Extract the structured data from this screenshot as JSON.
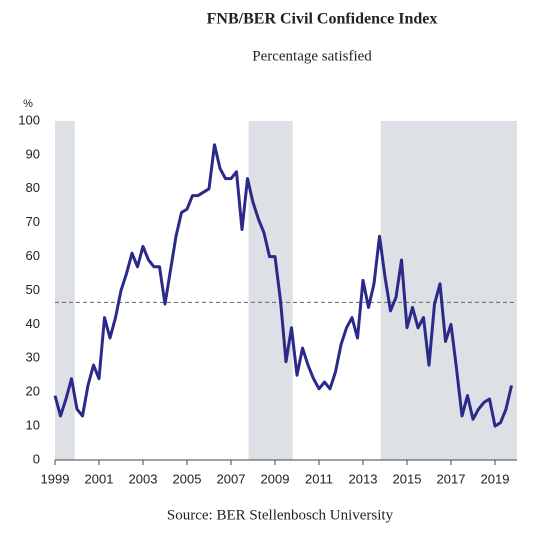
{
  "chart_data": {
    "type": "line",
    "title": "FNB/BER Civil Confidence Index",
    "subtitle": "Percentage satisfied",
    "source": "Source: BER Stellenbosch University",
    "ylabel": "%",
    "x": [
      1999.0,
      1999.25,
      1999.5,
      1999.75,
      2000.0,
      2000.25,
      2000.5,
      2000.75,
      2001.0,
      2001.25,
      2001.5,
      2001.75,
      2002.0,
      2002.25,
      2002.5,
      2002.75,
      2003.0,
      2003.25,
      2003.5,
      2003.75,
      2004.0,
      2004.25,
      2004.5,
      2004.75,
      2005.0,
      2005.25,
      2005.5,
      2005.75,
      2006.0,
      2006.25,
      2006.5,
      2006.75,
      2007.0,
      2007.25,
      2007.5,
      2007.75,
      2008.0,
      2008.25,
      2008.5,
      2008.75,
      2009.0,
      2009.25,
      2009.5,
      2009.75,
      2010.0,
      2010.25,
      2010.5,
      2010.75,
      2011.0,
      2011.25,
      2011.5,
      2011.75,
      2012.0,
      2012.25,
      2012.5,
      2012.75,
      2013.0,
      2013.25,
      2013.5,
      2013.75,
      2014.0,
      2014.25,
      2014.5,
      2014.75,
      2015.0,
      2015.25,
      2015.5,
      2015.75,
      2016.0,
      2016.25,
      2016.5,
      2016.75,
      2017.0,
      2017.25,
      2017.5,
      2017.75,
      2018.0,
      2018.25,
      2018.5,
      2018.75,
      2019.0,
      2019.25,
      2019.5,
      2019.75
    ],
    "series": [
      {
        "color": "#2b2a8a",
        "values": [
          19,
          13,
          18,
          24,
          15,
          13,
          22,
          28,
          24,
          42,
          36,
          42,
          50,
          55,
          61,
          57,
          63,
          59,
          57,
          57,
          46,
          56,
          66,
          73,
          74,
          78,
          78,
          79,
          80,
          93,
          86,
          83,
          83,
          85,
          68,
          83,
          76,
          71,
          67,
          60,
          60,
          47,
          29,
          39,
          25,
          33,
          28,
          24,
          21,
          23,
          21,
          26,
          34,
          39,
          42,
          36,
          53,
          45,
          52,
          66,
          54,
          44,
          48,
          59,
          39,
          45,
          39,
          42,
          28,
          46,
          52,
          35,
          40,
          27,
          13,
          19,
          12,
          15,
          17,
          18,
          10,
          11,
          15,
          22
        ]
      }
    ],
    "shaded_regions": [
      [
        1999.0,
        1999.9
      ],
      [
        2007.8,
        2009.8
      ],
      [
        2013.8,
        2020
      ]
    ],
    "shade_color": "#dde0e4",
    "reference_line": 46.5,
    "xlim": [
      1999,
      2020
    ],
    "xticks": [
      1999,
      2001,
      2003,
      2005,
      2007,
      2009,
      2011,
      2013,
      2015,
      2017,
      2019
    ],
    "ylim": [
      0,
      100
    ],
    "yticks": [
      0,
      10,
      20,
      30,
      40,
      50,
      60,
      70,
      80,
      90,
      100
    ]
  }
}
